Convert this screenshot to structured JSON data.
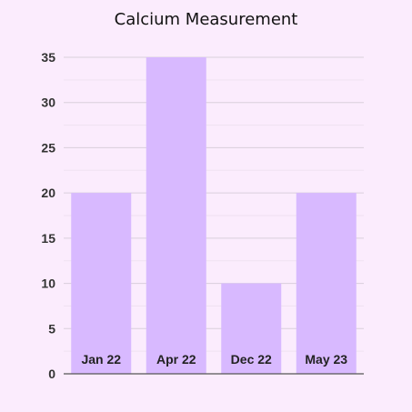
{
  "chart_data": {
    "type": "bar",
    "title": "Calcium Measurement",
    "xlabel": "",
    "ylabel": "",
    "categories": [
      "Jan 22",
      "Apr 22",
      "Dec 22",
      "May 23"
    ],
    "values": [
      20,
      35,
      10,
      20
    ],
    "ylim": [
      0,
      35
    ],
    "yticks": [
      0,
      5,
      10,
      15,
      20,
      25,
      30,
      35
    ],
    "grid": true,
    "legend": "none",
    "colors": {
      "bar": "#d8b9ff",
      "grid_major": "#d9cfdc",
      "grid_minor": "#efe1f1",
      "axis": "#555555",
      "background": "#fbecfd"
    }
  }
}
